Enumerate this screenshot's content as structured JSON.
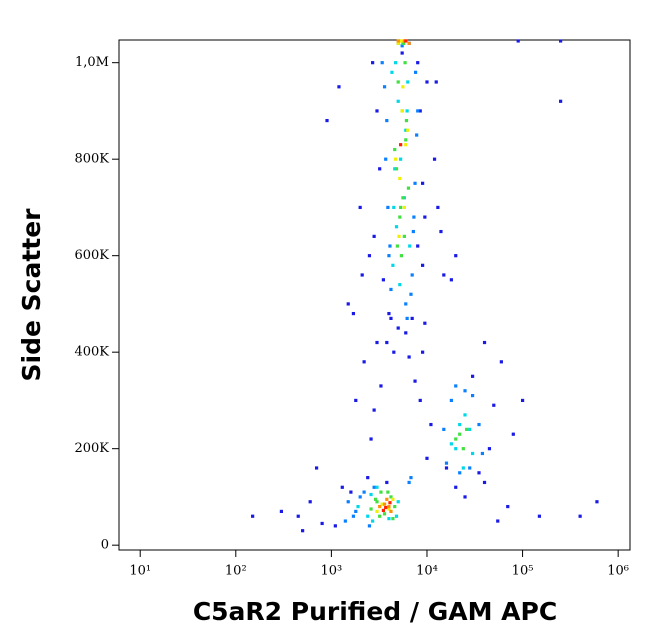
{
  "chart_data": {
    "type": "scatter",
    "x_label": "C5aR2 Purified / GAM APC",
    "y_label": "Side Scatter",
    "xscale": "log",
    "xlim": [
      6,
      1330000
    ],
    "ylim": [
      -10000,
      1047000
    ],
    "xticks": [
      {
        "value": 10,
        "label": "10¹"
      },
      {
        "value": 100,
        "label": "10²"
      },
      {
        "value": 1000,
        "label": "10³"
      },
      {
        "value": 10000,
        "label": "10⁴"
      },
      {
        "value": 100000,
        "label": "10⁵"
      },
      {
        "value": 1000000,
        "label": "10⁶"
      }
    ],
    "yticks": [
      0,
      {
        "value": 200000,
        "label": "200K"
      },
      {
        "value": 400000,
        "label": "400K"
      },
      {
        "value": 600000,
        "label": "600K"
      },
      {
        "value": 800000,
        "label": "800K"
      },
      {
        "value": 1000000,
        "label": "1,0M"
      }
    ],
    "series": [
      {
        "color": "#1a1ae6",
        "x": [
          1200,
          900,
          2000,
          2500,
          8000,
          9000,
          12000,
          1500,
          700,
          600,
          450,
          300,
          150,
          2200,
          3000,
          1800,
          14000,
          18000,
          40000,
          60000,
          70000,
          150000,
          250000,
          400000,
          600000,
          100000,
          50000,
          30000,
          11000,
          10000,
          2600,
          1700,
          2100,
          9500,
          13000,
          15000,
          20000,
          7500,
          3300,
          2800,
          16000,
          35000,
          45000,
          80000,
          5500,
          6500,
          4200,
          2400,
          1300,
          1100,
          500,
          800,
          25000,
          55000,
          250000,
          90000,
          12500,
          3800,
          9000,
          8500,
          3000,
          3200,
          8500,
          9500,
          2800,
          10000,
          2700,
          9000,
          3500,
          8000,
          4000,
          7000,
          6000,
          3800,
          5000,
          4500,
          6500,
          1600,
          20000,
          40000
        ],
        "y": [
          950000,
          880000,
          700000,
          600000,
          620000,
          750000,
          800000,
          500000,
          160000,
          90000,
          60000,
          70000,
          60000,
          380000,
          420000,
          300000,
          650000,
          550000,
          420000,
          380000,
          80000,
          60000,
          920000,
          60000,
          90000,
          300000,
          290000,
          350000,
          250000,
          180000,
          220000,
          480000,
          560000,
          460000,
          700000,
          560000,
          600000,
          340000,
          330000,
          280000,
          160000,
          150000,
          200000,
          230000,
          1020000,
          1040000,
          470000,
          140000,
          120000,
          40000,
          30000,
          45000,
          100000,
          50000,
          1045000,
          1045000,
          960000,
          130000,
          400000,
          300000,
          900000,
          780000,
          900000,
          680000,
          640000,
          960000,
          1000000,
          580000,
          550000,
          1000000,
          480000,
          470000,
          440000,
          420000,
          450000,
          400000,
          390000,
          110000,
          120000,
          130000
        ]
      },
      {
        "color": "#0a80ff",
        "x": [
          3400,
          3600,
          8000,
          7800,
          3700,
          7500,
          3900,
          7200,
          4000,
          7000,
          4200,
          6800,
          3800,
          7600,
          4100,
          7300,
          1800,
          2000,
          6000,
          6200,
          1700,
          2200,
          6500,
          6800,
          15000,
          35000,
          16000,
          38000,
          18000,
          30000,
          20000,
          25000,
          22000,
          28000,
          2500,
          2800,
          1500,
          1400,
          5000,
          5500
        ],
        "y": [
          1000000,
          950000,
          900000,
          850000,
          800000,
          750000,
          700000,
          650000,
          600000,
          560000,
          530000,
          520000,
          880000,
          980000,
          620000,
          680000,
          70000,
          100000,
          500000,
          470000,
          60000,
          110000,
          130000,
          140000,
          240000,
          250000,
          170000,
          190000,
          300000,
          310000,
          330000,
          320000,
          150000,
          160000,
          40000,
          120000,
          90000,
          50000,
          1040000,
          1035000
        ]
      },
      {
        "color": "#00d8e8",
        "x": [
          4300,
          5000,
          6000,
          4600,
          5800,
          4800,
          6600,
          4400,
          6200,
          5200,
          2400,
          4000,
          5000,
          1900,
          3000,
          2600,
          20000,
          28000,
          22000,
          30000,
          4700,
          5600,
          6300,
          4500,
          2700,
          4800,
          25000,
          18000,
          24000,
          5300
        ],
        "y": [
          980000,
          920000,
          860000,
          780000,
          720000,
          660000,
          620000,
          580000,
          900000,
          540000,
          60000,
          55000,
          90000,
          80000,
          120000,
          105000,
          200000,
          240000,
          250000,
          190000,
          1000000,
          1040000,
          960000,
          700000,
          50000,
          60000,
          270000,
          210000,
          160000,
          800000
        ]
      },
      {
        "color": "#40e040",
        "x": [
          5000,
          5500,
          6000,
          4800,
          5600,
          5200,
          6400,
          4600,
          5800,
          5400,
          2600,
          3000,
          3600,
          4200,
          3200,
          4600,
          2900,
          3900,
          20000,
          24000,
          26000,
          22000,
          5100,
          5700,
          6100,
          5300,
          4900,
          5900,
          3300,
          4400
        ],
        "y": [
          960000,
          900000,
          840000,
          780000,
          720000,
          680000,
          740000,
          820000,
          640000,
          600000,
          75000,
          90000,
          65000,
          100000,
          60000,
          80000,
          95000,
          110000,
          220000,
          200000,
          240000,
          230000,
          1045000,
          1040000,
          880000,
          700000,
          620000,
          1000000,
          110000,
          55000
        ]
      },
      {
        "color": "#f0f000",
        "x": [
          5500,
          6000,
          5200,
          5800,
          6300,
          5400,
          3400,
          4000,
          3000,
          4400,
          5000,
          6000,
          5600,
          5100,
          4700
        ],
        "y": [
          900000,
          830000,
          760000,
          700000,
          860000,
          1045000,
          85000,
          75000,
          70000,
          95000,
          1040000,
          1045000,
          950000,
          640000,
          800000
        ]
      },
      {
        "color": "#ff9000",
        "x": [
          3600,
          4200,
          3200,
          3800,
          5800,
          5000,
          6500,
          4000
        ],
        "y": [
          85000,
          70000,
          80000,
          95000,
          1045000,
          1045000,
          1040000,
          80000
        ]
      },
      {
        "color": "#ff2000",
        "x": [
          3700,
          4100,
          3500,
          6000,
          5300
        ],
        "y": [
          78000,
          88000,
          72000,
          1045000,
          830000
        ]
      }
    ]
  }
}
